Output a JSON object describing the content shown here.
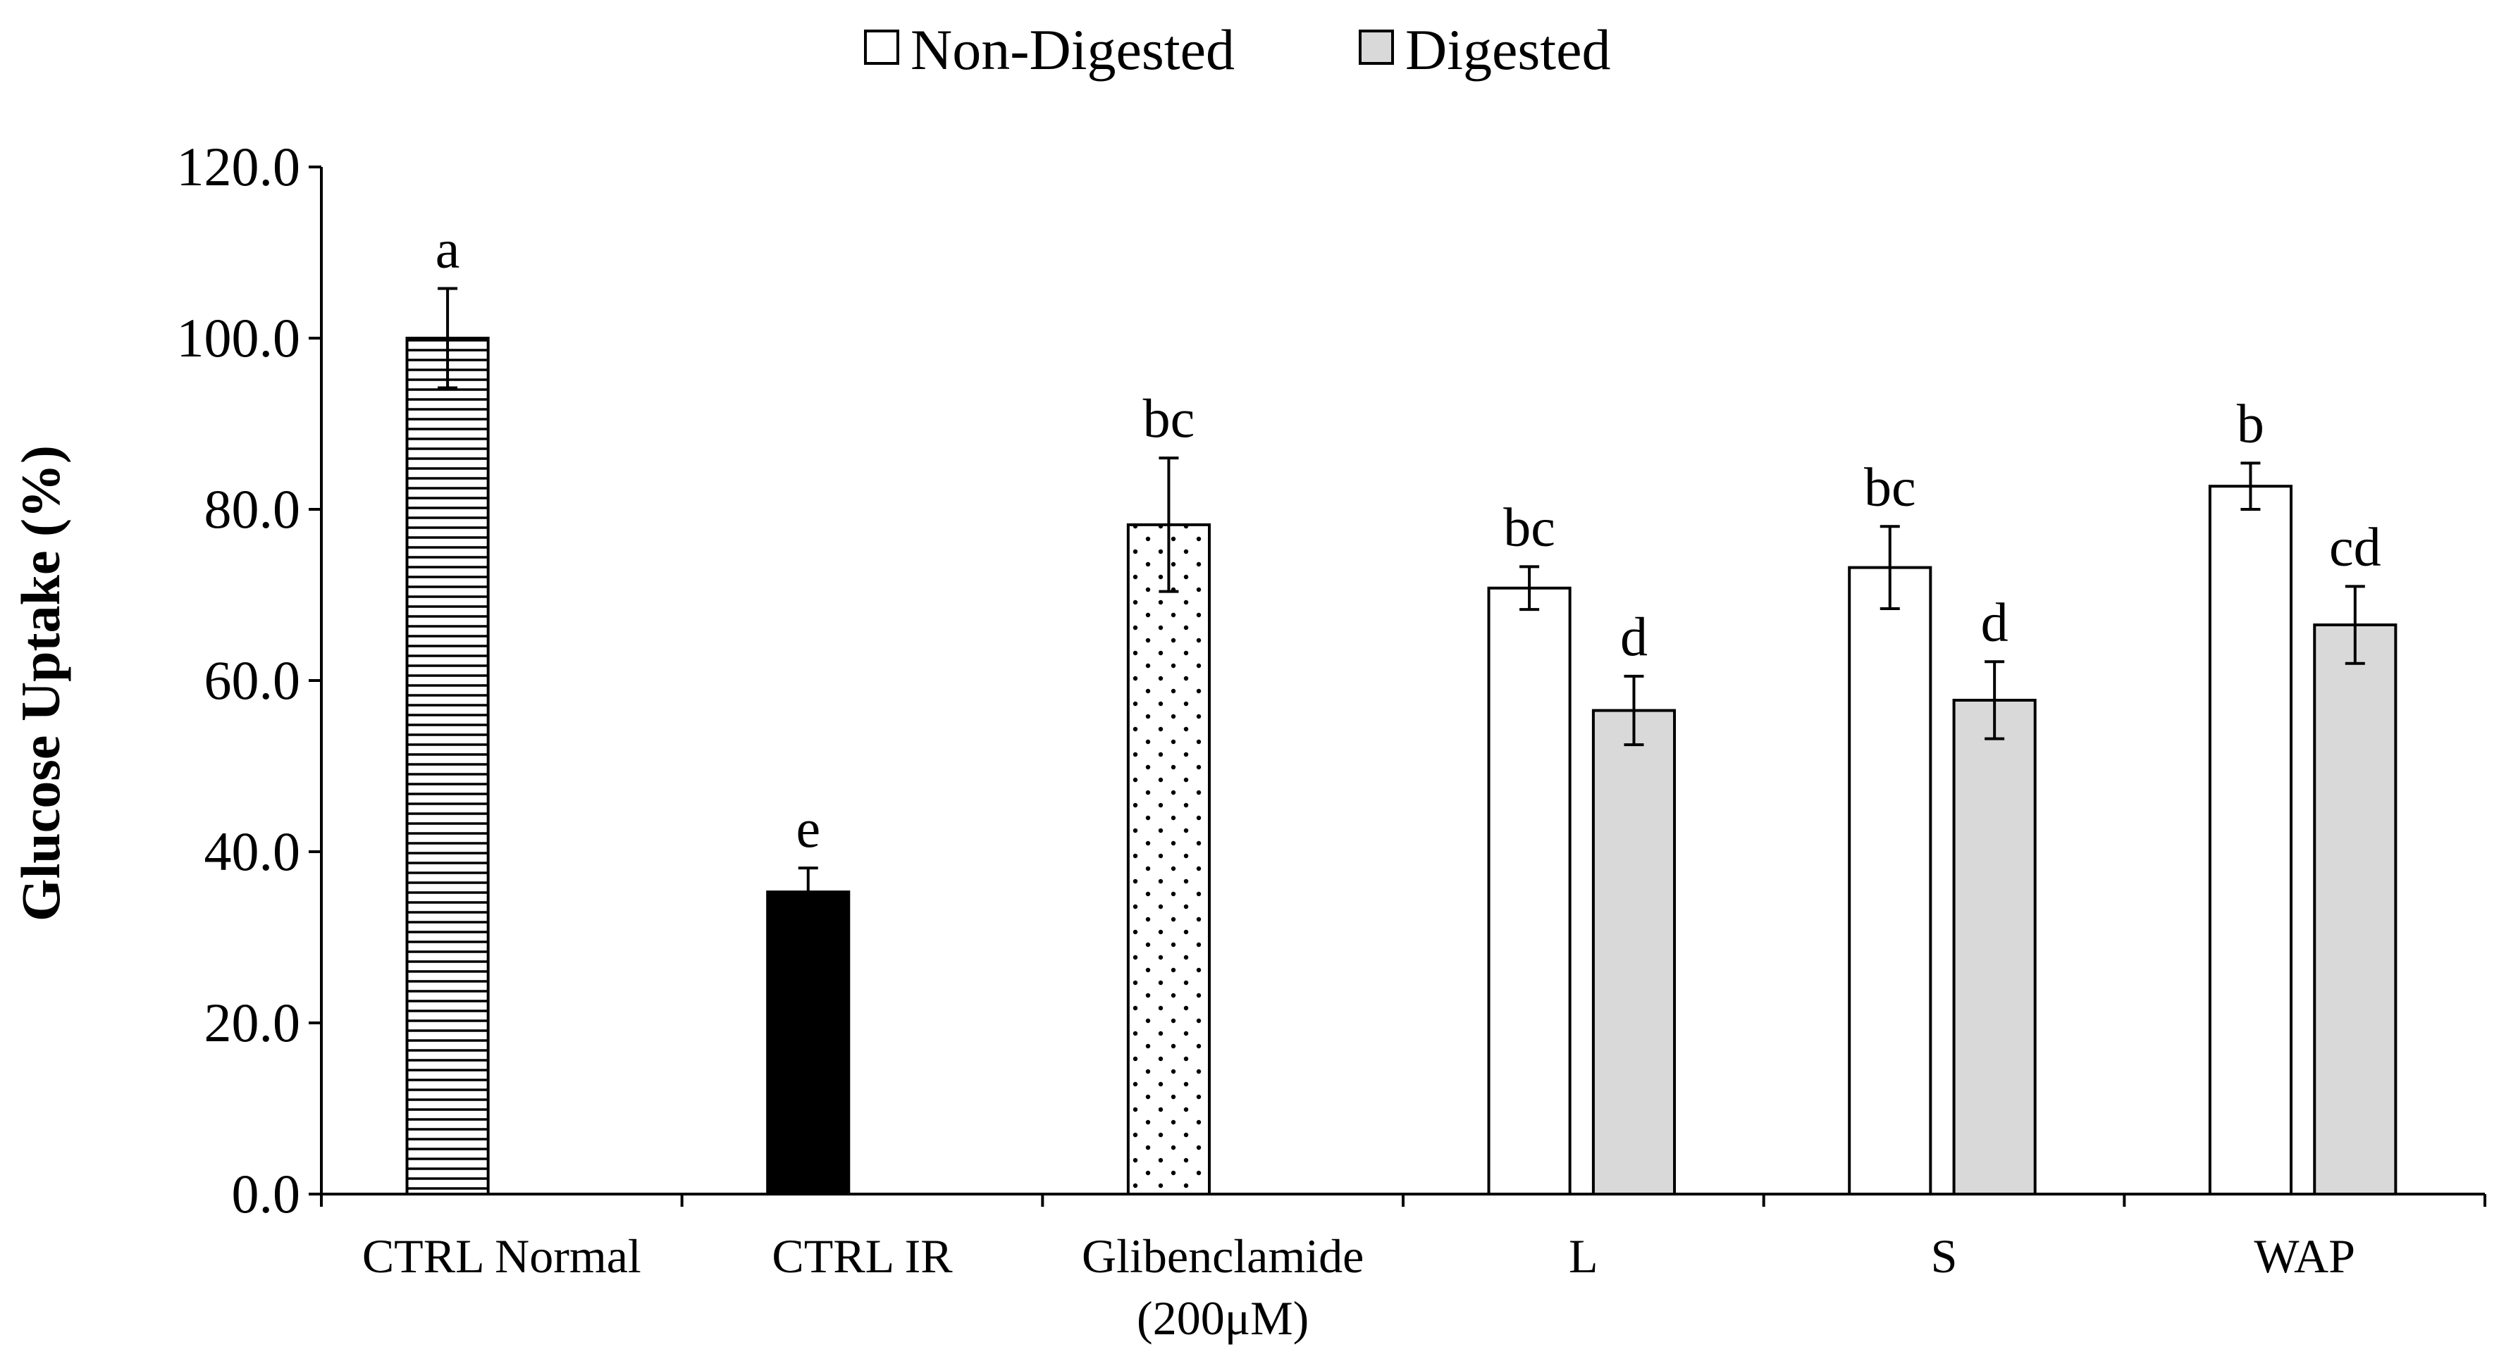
{
  "chart_data": {
    "type": "bar",
    "title": "",
    "xlabel": "",
    "ylabel": "Glucose Uptake (%)",
    "ylim": [
      0,
      120
    ],
    "yticks": [
      "0.0",
      "20.0",
      "40.0",
      "60.0",
      "80.0",
      "100.0",
      "120.0"
    ],
    "grid": false,
    "legend": {
      "placement": "top-center",
      "entries": [
        "Non-Digested",
        "Digested"
      ]
    },
    "categories": [
      {
        "label": "CTRL Normal",
        "label_line2": ""
      },
      {
        "label": "CTRL IR",
        "label_line2": ""
      },
      {
        "label": "Glibenclamide",
        "label_line2": "(200μM)"
      },
      {
        "label": "L",
        "label_line2": ""
      },
      {
        "label": "S",
        "label_line2": ""
      },
      {
        "label": "WAP",
        "label_line2": ""
      }
    ],
    "bars": [
      {
        "category": 0,
        "slot": "non",
        "value": 100.0,
        "error": 5.8,
        "sig": "a",
        "fill": "hstripes"
      },
      {
        "category": 1,
        "slot": "non",
        "value": 35.3,
        "error": 2.8,
        "sig": "e",
        "fill": "black"
      },
      {
        "category": 2,
        "slot": "non",
        "value": 78.2,
        "error": 7.8,
        "sig": "bc",
        "fill": "dots"
      },
      {
        "category": 3,
        "slot": "non",
        "value": 70.8,
        "error": 2.5,
        "sig": "bc",
        "fill": "white",
        "series": "Non-Digested"
      },
      {
        "category": 3,
        "slot": "dig",
        "value": 56.5,
        "error": 4.0,
        "sig": "d",
        "fill": "gray",
        "series": "Digested"
      },
      {
        "category": 4,
        "slot": "non",
        "value": 73.2,
        "error": 4.8,
        "sig": "bc",
        "fill": "white",
        "series": "Non-Digested"
      },
      {
        "category": 4,
        "slot": "dig",
        "value": 57.7,
        "error": 4.5,
        "sig": "d",
        "fill": "gray",
        "series": "Digested"
      },
      {
        "category": 5,
        "slot": "non",
        "value": 82.7,
        "error": 2.7,
        "sig": "b",
        "fill": "white",
        "series": "Non-Digested"
      },
      {
        "category": 5,
        "slot": "dig",
        "value": 66.5,
        "error": 4.5,
        "sig": "cd",
        "fill": "gray",
        "series": "Digested"
      }
    ],
    "colors": {
      "digested": "#d9d9d9",
      "non_digested": "#ffffff",
      "ir": "#000000",
      "outline": "#000000"
    }
  }
}
